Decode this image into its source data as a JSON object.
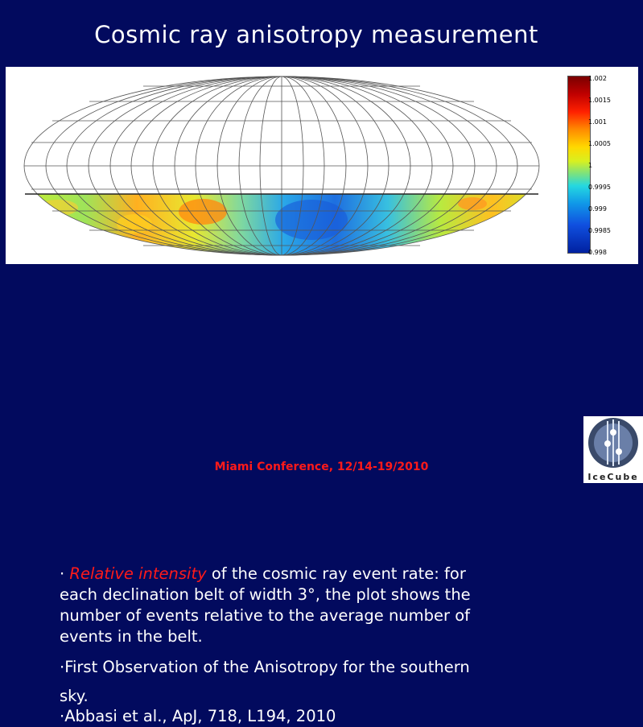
{
  "slide": {
    "title": "Cosmic ray anisotropy measurement",
    "footer": "Miami Conference, 12/14-19/2010",
    "logo_text": "IceCube"
  },
  "colorbar": {
    "ticks": [
      "1.002",
      "1.0015",
      "1.001",
      "1.0005",
      "1",
      "0.9995",
      "0.999",
      "0.9985",
      "0.998"
    ]
  },
  "bullets": {
    "b1_prefix": "· ",
    "b1_emphasis": "Relative intensity",
    "b1_rest": " of the cosmic ray event rate: for each declination belt of width 3°, the plot shows the number of events  relative to the average number of events in the belt.",
    "b2": "·First Observation of the Anisotropy for the southern sky.",
    "b3": "·Abbasi et al., ApJ, 718, L194, 2010"
  },
  "colors": {
    "background": "#020a5e",
    "emphasis": "#ff1a1a"
  }
}
